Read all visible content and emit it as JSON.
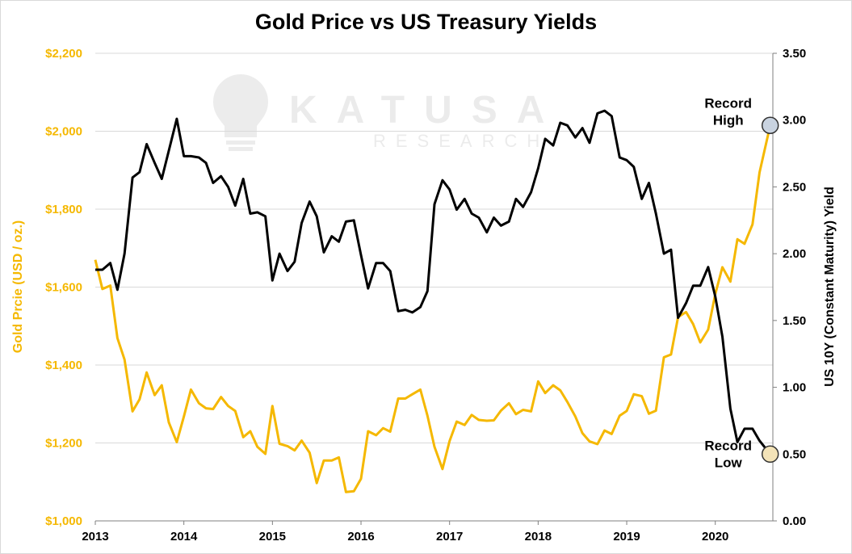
{
  "chart_data": {
    "type": "line",
    "title": "Gold Price vs US Treasury Yields",
    "x": {
      "range": [
        2013.0,
        2020.65
      ],
      "tick_labels": [
        "2013",
        "2014",
        "2015",
        "2016",
        "2017",
        "2018",
        "2019",
        "2020"
      ],
      "tick_values": [
        2013,
        2014,
        2015,
        2016,
        2017,
        2018,
        2019,
        2020
      ]
    },
    "y_left": {
      "label": "Gold Prcie (USD / oz.)",
      "range": [
        1000,
        2200
      ],
      "tick_labels": [
        "$1,000",
        "$1,200",
        "$1,400",
        "$1,600",
        "$1,800",
        "$2,000",
        "$2,200"
      ],
      "tick_values": [
        1000,
        1200,
        1400,
        1600,
        1800,
        2000,
        2200
      ]
    },
    "y_right": {
      "label": "US 10Y (Constant Maturity) Yield",
      "range": [
        0,
        3.5
      ],
      "tick_labels": [
        "0.00",
        "0.50",
        "1.00",
        "1.50",
        "2.00",
        "2.50",
        "3.00",
        "3.50"
      ],
      "tick_values": [
        0,
        0.5,
        1.0,
        1.5,
        2.0,
        2.5,
        3.0,
        3.5
      ]
    },
    "grid": "horizontal",
    "series": [
      {
        "axis": "left",
        "color": "#f5b800",
        "points": [
          [
            2013.0,
            1670
          ],
          [
            2013.08,
            1595
          ],
          [
            2013.17,
            1604
          ],
          [
            2013.25,
            1469
          ],
          [
            2013.33,
            1414
          ],
          [
            2013.42,
            1281
          ],
          [
            2013.5,
            1312
          ],
          [
            2013.58,
            1381
          ],
          [
            2013.67,
            1323
          ],
          [
            2013.75,
            1348
          ],
          [
            2013.83,
            1253
          ],
          [
            2013.92,
            1202
          ],
          [
            2014.0,
            1268
          ],
          [
            2014.08,
            1337
          ],
          [
            2014.17,
            1302
          ],
          [
            2014.25,
            1289
          ],
          [
            2014.33,
            1287
          ],
          [
            2014.42,
            1318
          ],
          [
            2014.5,
            1295
          ],
          [
            2014.58,
            1282
          ],
          [
            2014.67,
            1215
          ],
          [
            2014.75,
            1230
          ],
          [
            2014.83,
            1190
          ],
          [
            2014.92,
            1172
          ],
          [
            2015.0,
            1295
          ],
          [
            2015.08,
            1198
          ],
          [
            2015.17,
            1192
          ],
          [
            2015.25,
            1181
          ],
          [
            2015.33,
            1206
          ],
          [
            2015.42,
            1175
          ],
          [
            2015.5,
            1097
          ],
          [
            2015.58,
            1155
          ],
          [
            2015.67,
            1155
          ],
          [
            2015.75,
            1163
          ],
          [
            2015.83,
            1074
          ],
          [
            2015.92,
            1076
          ],
          [
            2016.0,
            1108
          ],
          [
            2016.08,
            1230
          ],
          [
            2016.17,
            1220
          ],
          [
            2016.25,
            1238
          ],
          [
            2016.33,
            1229
          ],
          [
            2016.42,
            1314
          ],
          [
            2016.5,
            1314
          ],
          [
            2016.58,
            1325
          ],
          [
            2016.67,
            1337
          ],
          [
            2016.75,
            1270
          ],
          [
            2016.83,
            1190
          ],
          [
            2016.92,
            1133
          ],
          [
            2017.0,
            1205
          ],
          [
            2017.08,
            1255
          ],
          [
            2017.17,
            1246
          ],
          [
            2017.25,
            1272
          ],
          [
            2017.33,
            1259
          ],
          [
            2017.42,
            1257
          ],
          [
            2017.5,
            1258
          ],
          [
            2017.58,
            1283
          ],
          [
            2017.67,
            1302
          ],
          [
            2017.75,
            1274
          ],
          [
            2017.83,
            1285
          ],
          [
            2017.92,
            1281
          ],
          [
            2018.0,
            1358
          ],
          [
            2018.08,
            1328
          ],
          [
            2018.17,
            1348
          ],
          [
            2018.25,
            1335
          ],
          [
            2018.33,
            1305
          ],
          [
            2018.42,
            1268
          ],
          [
            2018.5,
            1225
          ],
          [
            2018.58,
            1204
          ],
          [
            2018.67,
            1197
          ],
          [
            2018.75,
            1232
          ],
          [
            2018.83,
            1223
          ],
          [
            2018.92,
            1270
          ],
          [
            2019.0,
            1282
          ],
          [
            2019.08,
            1325
          ],
          [
            2019.17,
            1320
          ],
          [
            2019.25,
            1275
          ],
          [
            2019.33,
            1283
          ],
          [
            2019.42,
            1420
          ],
          [
            2019.5,
            1427
          ],
          [
            2019.58,
            1523
          ],
          [
            2019.67,
            1536
          ],
          [
            2019.75,
            1505
          ],
          [
            2019.83,
            1458
          ],
          [
            2019.92,
            1491
          ],
          [
            2020.0,
            1582
          ],
          [
            2020.08,
            1651
          ],
          [
            2020.17,
            1614
          ],
          [
            2020.25,
            1723
          ],
          [
            2020.33,
            1711
          ],
          [
            2020.42,
            1761
          ],
          [
            2020.5,
            1894
          ],
          [
            2020.62,
            2015
          ]
        ]
      },
      {
        "axis": "right",
        "color": "#000000",
        "points": [
          [
            2013.0,
            1.88
          ],
          [
            2013.08,
            1.88
          ],
          [
            2013.17,
            1.93
          ],
          [
            2013.25,
            1.73
          ],
          [
            2013.33,
            2.0
          ],
          [
            2013.42,
            2.57
          ],
          [
            2013.5,
            2.61
          ],
          [
            2013.58,
            2.82
          ],
          [
            2013.67,
            2.68
          ],
          [
            2013.75,
            2.56
          ],
          [
            2013.83,
            2.77
          ],
          [
            2013.92,
            3.01
          ],
          [
            2014.0,
            2.73
          ],
          [
            2014.08,
            2.73
          ],
          [
            2014.17,
            2.72
          ],
          [
            2014.25,
            2.68
          ],
          [
            2014.33,
            2.53
          ],
          [
            2014.42,
            2.58
          ],
          [
            2014.5,
            2.5
          ],
          [
            2014.58,
            2.36
          ],
          [
            2014.67,
            2.56
          ],
          [
            2014.75,
            2.3
          ],
          [
            2014.83,
            2.31
          ],
          [
            2014.92,
            2.28
          ],
          [
            2015.0,
            1.8
          ],
          [
            2015.08,
            2.0
          ],
          [
            2015.17,
            1.87
          ],
          [
            2015.25,
            1.94
          ],
          [
            2015.33,
            2.23
          ],
          [
            2015.42,
            2.39
          ],
          [
            2015.5,
            2.28
          ],
          [
            2015.58,
            2.01
          ],
          [
            2015.67,
            2.13
          ],
          [
            2015.75,
            2.09
          ],
          [
            2015.83,
            2.24
          ],
          [
            2015.92,
            2.25
          ],
          [
            2016.0,
            1.99
          ],
          [
            2016.08,
            1.74
          ],
          [
            2016.17,
            1.93
          ],
          [
            2016.25,
            1.93
          ],
          [
            2016.33,
            1.87
          ],
          [
            2016.42,
            1.57
          ],
          [
            2016.5,
            1.58
          ],
          [
            2016.58,
            1.56
          ],
          [
            2016.67,
            1.6
          ],
          [
            2016.75,
            1.72
          ],
          [
            2016.83,
            2.37
          ],
          [
            2016.92,
            2.55
          ],
          [
            2017.0,
            2.48
          ],
          [
            2017.08,
            2.33
          ],
          [
            2017.17,
            2.41
          ],
          [
            2017.25,
            2.3
          ],
          [
            2017.33,
            2.27
          ],
          [
            2017.42,
            2.16
          ],
          [
            2017.5,
            2.27
          ],
          [
            2017.58,
            2.21
          ],
          [
            2017.67,
            2.24
          ],
          [
            2017.75,
            2.41
          ],
          [
            2017.83,
            2.35
          ],
          [
            2017.92,
            2.46
          ],
          [
            2018.0,
            2.64
          ],
          [
            2018.08,
            2.86
          ],
          [
            2018.17,
            2.81
          ],
          [
            2018.25,
            2.98
          ],
          [
            2018.33,
            2.96
          ],
          [
            2018.42,
            2.87
          ],
          [
            2018.5,
            2.94
          ],
          [
            2018.58,
            2.83
          ],
          [
            2018.67,
            3.05
          ],
          [
            2018.75,
            3.07
          ],
          [
            2018.83,
            3.03
          ],
          [
            2018.92,
            2.72
          ],
          [
            2019.0,
            2.7
          ],
          [
            2019.08,
            2.65
          ],
          [
            2019.17,
            2.41
          ],
          [
            2019.25,
            2.53
          ],
          [
            2019.33,
            2.3
          ],
          [
            2019.42,
            2.0
          ],
          [
            2019.5,
            2.03
          ],
          [
            2019.58,
            1.52
          ],
          [
            2019.67,
            1.63
          ],
          [
            2019.75,
            1.76
          ],
          [
            2019.83,
            1.76
          ],
          [
            2019.92,
            1.9
          ],
          [
            2020.0,
            1.68
          ],
          [
            2020.08,
            1.38
          ],
          [
            2020.17,
            0.84
          ],
          [
            2020.25,
            0.59
          ],
          [
            2020.33,
            0.69
          ],
          [
            2020.42,
            0.69
          ],
          [
            2020.5,
            0.6
          ],
          [
            2020.62,
            0.5
          ]
        ]
      }
    ],
    "annotations": [
      {
        "text_line1": "Record",
        "text_line2": "High",
        "x": 2020.62,
        "y_left": 2015,
        "marker_fill": "#c9d3e0"
      },
      {
        "text_line1": "Record",
        "text_line2": "Low",
        "x": 2020.62,
        "y_right": 0.5,
        "marker_fill": "#f3e3b8"
      }
    ]
  },
  "watermark": {
    "brand": "KATUSA",
    "sub": "RESEARCH",
    "icon": "lightbulb-k-icon"
  }
}
